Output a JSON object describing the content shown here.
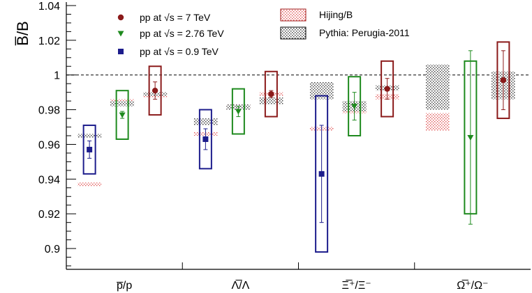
{
  "chart_data": {
    "type": "scatter",
    "ylabel": "B̅/B",
    "ylim": [
      0.888,
      1.042
    ],
    "yticks": [
      0.9,
      0.92,
      0.94,
      0.96,
      0.98,
      1,
      1.02,
      1.04
    ],
    "reference_line": 1.0,
    "categories": [
      "p̅/p",
      "Λ̅/Λ",
      "Ξ̅⁺/Ξ⁻",
      "Ω̅⁺/Ω⁻"
    ],
    "series": [
      {
        "name": "pp at √s = 0.9 TeV",
        "color": "#1c1c8c",
        "marker": "square",
        "values": [
          0.957,
          0.963,
          0.943,
          null
        ],
        "stat_err": [
          0.005,
          0.006,
          0.028,
          null
        ],
        "syst_err": [
          0.014,
          0.017,
          0.045,
          null
        ]
      },
      {
        "name": "pp at √s = 2.76 TeV",
        "color": "#1e8a1e",
        "marker": "triangle-down",
        "values": [
          0.977,
          0.979,
          0.982,
          0.964
        ],
        "stat_err": [
          0.002,
          0.003,
          0.008,
          0.05
        ],
        "syst_err": [
          0.014,
          0.013,
          0.017,
          0.044
        ]
      },
      {
        "name": "pp at √s = 7 TeV",
        "color": "#8b1a1a",
        "marker": "circle",
        "values": [
          0.991,
          0.989,
          0.992,
          0.997
        ],
        "stat_err": [
          0.005,
          0.002,
          0.006,
          0.017
        ],
        "syst_err": [
          0.014,
          0.013,
          0.016,
          0.022
        ]
      }
    ],
    "models": [
      {
        "name": "Hijing/B",
        "color": "#e05050",
        "bands": [
          [
            {
              "lo": 0.936,
              "hi": 0.938
            },
            {
              "lo": 0.984,
              "hi": 0.986
            },
            {
              "lo": 0.987,
              "hi": 0.99
            }
          ],
          [
            {
              "lo": 0.965,
              "hi": 0.967
            },
            {
              "lo": 0.98,
              "hi": 0.983
            },
            {
              "lo": 0.988,
              "hi": 0.99
            }
          ],
          [
            {
              "lo": 0.968,
              "hi": 0.97
            },
            {
              "lo": 0.978,
              "hi": 0.981
            },
            {
              "lo": 0.986,
              "hi": 0.989
            }
          ],
          [
            {
              "lo": 0.968,
              "hi": 0.978
            },
            null,
            {
              "lo": 0.99,
              "hi": 0.999
            }
          ]
        ]
      },
      {
        "name": "Pythia: Perugia-2011",
        "color": "#444444",
        "bands": [
          [
            {
              "lo": 0.964,
              "hi": 0.966
            },
            {
              "lo": 0.982,
              "hi": 0.985
            },
            {
              "lo": 0.988,
              "hi": 0.99
            }
          ],
          [
            {
              "lo": 0.971,
              "hi": 0.975
            },
            {
              "lo": 0.98,
              "hi": 0.983
            },
            {
              "lo": 0.983,
              "hi": 0.987
            }
          ],
          [
            {
              "lo": 0.986,
              "hi": 0.996
            },
            {
              "lo": 0.979,
              "hi": 0.985
            },
            {
              "lo": 0.991,
              "hi": 0.994
            }
          ],
          [
            {
              "lo": 0.98,
              "hi": 1.006
            },
            null,
            {
              "lo": 0.986,
              "hi": 1.002
            }
          ]
        ]
      }
    ],
    "legend": {
      "placement": "top",
      "entries": [
        "pp at √s = 7 TeV",
        "pp at √s = 2.76 TeV",
        "pp at √s = 0.9 TeV",
        "Hijing/B",
        "Pythia: Perugia-2011"
      ]
    }
  }
}
